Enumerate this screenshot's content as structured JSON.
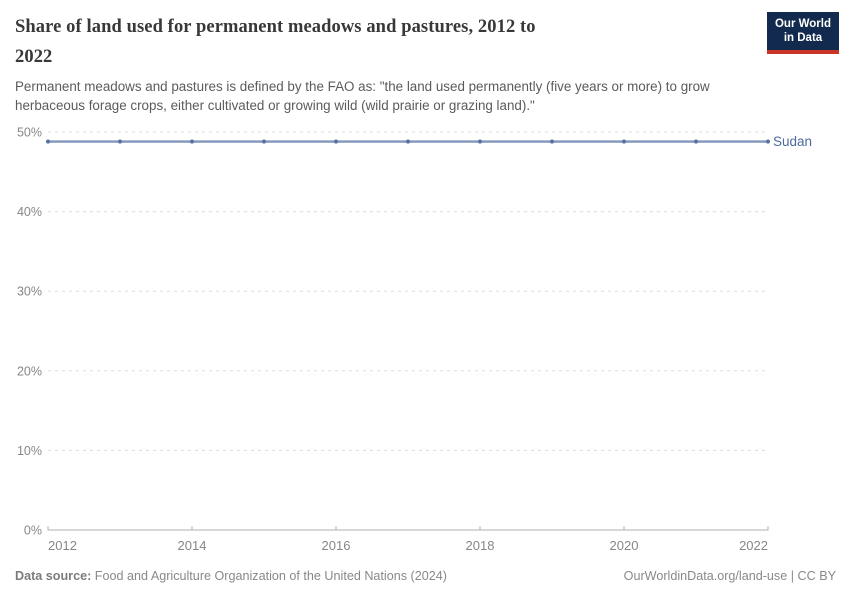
{
  "header": {
    "title_lines": [
      "Share of land used for permanent meadows and pastures, 2012 to",
      "2022"
    ],
    "subtitle_lines": [
      "Permanent meadows and pastures is defined by the FAO as: \"the land used permanently (five years or more) to grow",
      "herbaceous forage crops, either cultivated or growing wild (wild prairie or grazing land).\""
    ],
    "logo": {
      "line1": "Our World",
      "line2": "in Data",
      "bg_color": "#122a4d",
      "accent_color": "#cb3529"
    }
  },
  "chart_data": {
    "type": "line",
    "title": "Share of land used for permanent meadows and pastures, 2012 to 2022",
    "xlabel": "",
    "ylabel": "",
    "x": [
      2012,
      2013,
      2014,
      2015,
      2016,
      2017,
      2018,
      2019,
      2020,
      2021,
      2022
    ],
    "series": [
      {
        "name": "Sudan",
        "values": [
          48.8,
          48.8,
          48.8,
          48.8,
          48.8,
          48.8,
          48.8,
          48.8,
          48.8,
          48.8,
          48.8
        ],
        "line_color": "#8096bb",
        "marker_color": "#5773a6",
        "label_color": "#4c6a9c"
      }
    ],
    "ylim": [
      0,
      50
    ],
    "yticks": [
      0,
      10,
      20,
      30,
      40,
      50
    ],
    "ytick_suffix": "%",
    "xticks": [
      2012,
      2014,
      2016,
      2018,
      2020,
      2022
    ],
    "grid": "horizontal-dashed",
    "legend_position": "end-of-line",
    "grid_color": "#dcdcdc",
    "axis_color": "#b0b0b0",
    "tick_label_color": "#878787"
  },
  "footer": {
    "source_label": "Data source:",
    "source_text": "Food and Agriculture Organization of the United Nations (2024)",
    "link_text": "OurWorldinData.org/land-use | CC BY"
  }
}
